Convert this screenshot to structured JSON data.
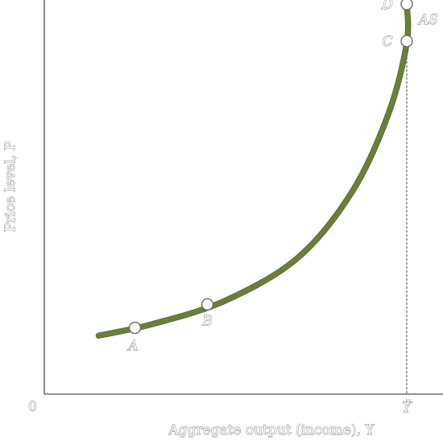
{
  "chart_data": {
    "type": "line",
    "title": "",
    "xlabel": "Aggregate output (income), Y",
    "ylabel": "Price level, P",
    "origin_label": "0",
    "x_tick_label": "Ȳ",
    "series": [
      {
        "name": "AS",
        "x": [
          0.15,
          0.3,
          0.5,
          0.7,
          0.85,
          0.95,
          1.0,
          1.0
        ],
        "y": [
          0.15,
          0.18,
          0.24,
          0.35,
          0.52,
          0.72,
          0.9,
          1.0
        ]
      }
    ],
    "points": [
      {
        "label": "A",
        "x": 0.25,
        "y": 0.17
      },
      {
        "label": "B",
        "x": 0.45,
        "y": 0.23
      },
      {
        "label": "C",
        "x": 1.0,
        "y": 0.905
      },
      {
        "label": "D",
        "x": 1.0,
        "y": 1.0
      }
    ],
    "full_employment_output": 1.0,
    "grid": false,
    "legend": "none"
  }
}
